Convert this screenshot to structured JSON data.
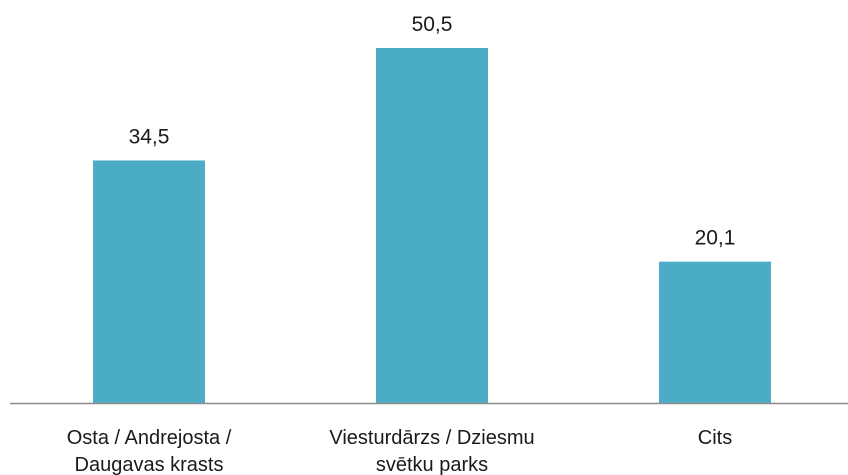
{
  "chart_data": {
    "type": "bar",
    "categories": [
      [
        "Osta / Andrejosta  /",
        "Daugavas krasts"
      ],
      [
        "Viesturdārzs / Dziesmu",
        "svētku parks"
      ],
      [
        "Cits"
      ]
    ],
    "values": [
      34.5,
      50.5,
      20.1
    ],
    "value_labels": [
      "34,5",
      "50,5",
      "20,1"
    ],
    "ylim": [
      0,
      55
    ],
    "bar_color": "#4bacc6",
    "axis_color": "#8c8c8c",
    "grid": false,
    "legend": "none"
  }
}
